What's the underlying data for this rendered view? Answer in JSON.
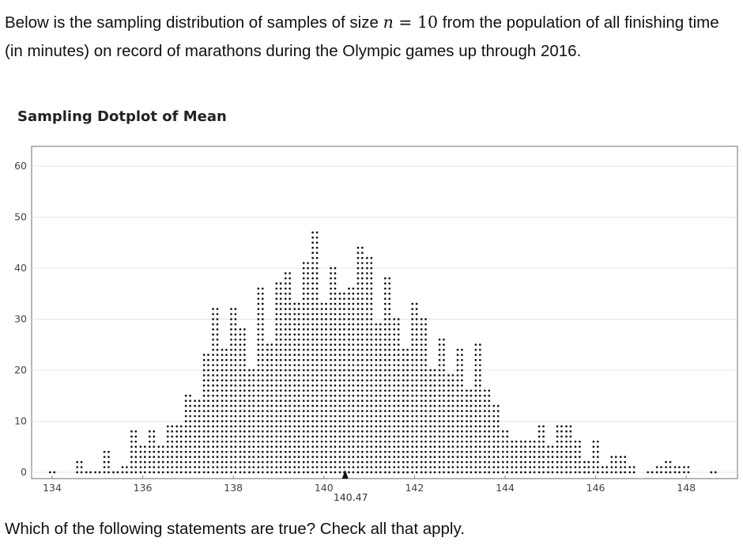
{
  "intro": {
    "part1": "Below is the sampling distribution of samples of size ",
    "n_symbol": "n",
    "equals": " = ",
    "n_value": "10",
    "part2": " from the population of all finishing time (in minutes) on record of marathons during the Olympic games up through 2016."
  },
  "chart_data": {
    "type": "scatter",
    "subtype": "dotplot",
    "title": "Sampling Dotplot of Mean",
    "xlabel": "",
    "ylabel": "",
    "xlim": [
      133.2,
      149.0
    ],
    "ylim": [
      0,
      65
    ],
    "x_ticks": [
      "134",
      "136",
      "138",
      "140",
      "142",
      "144",
      "146",
      "148"
    ],
    "y_ticks": [
      "0",
      "10",
      "20",
      "30",
      "40",
      "50",
      "60"
    ],
    "grid": true,
    "bin_width": 0.2,
    "dot_color": "#111111",
    "mean_marker": {
      "value": 140.47,
      "label": "140.47"
    },
    "bins": [
      {
        "x": 134.0,
        "count": 1
      },
      {
        "x": 134.6,
        "count": 3
      },
      {
        "x": 134.8,
        "count": 1
      },
      {
        "x": 135.0,
        "count": 1
      },
      {
        "x": 135.2,
        "count": 5
      },
      {
        "x": 135.4,
        "count": 1
      },
      {
        "x": 135.6,
        "count": 2
      },
      {
        "x": 135.8,
        "count": 9
      },
      {
        "x": 136.0,
        "count": 6
      },
      {
        "x": 136.2,
        "count": 9
      },
      {
        "x": 136.4,
        "count": 6
      },
      {
        "x": 136.6,
        "count": 10
      },
      {
        "x": 136.8,
        "count": 10
      },
      {
        "x": 137.0,
        "count": 16
      },
      {
        "x": 137.2,
        "count": 15
      },
      {
        "x": 137.4,
        "count": 24
      },
      {
        "x": 137.6,
        "count": 33
      },
      {
        "x": 137.8,
        "count": 25
      },
      {
        "x": 138.0,
        "count": 33
      },
      {
        "x": 138.2,
        "count": 29
      },
      {
        "x": 138.4,
        "count": 21
      },
      {
        "x": 138.6,
        "count": 37
      },
      {
        "x": 138.8,
        "count": 26
      },
      {
        "x": 139.0,
        "count": 38
      },
      {
        "x": 139.2,
        "count": 40
      },
      {
        "x": 139.4,
        "count": 34
      },
      {
        "x": 139.6,
        "count": 42
      },
      {
        "x": 139.8,
        "count": 48
      },
      {
        "x": 140.0,
        "count": 34
      },
      {
        "x": 140.2,
        "count": 41
      },
      {
        "x": 140.4,
        "count": 36
      },
      {
        "x": 140.6,
        "count": 37
      },
      {
        "x": 140.8,
        "count": 45
      },
      {
        "x": 141.0,
        "count": 43
      },
      {
        "x": 141.2,
        "count": 30
      },
      {
        "x": 141.4,
        "count": 39
      },
      {
        "x": 141.6,
        "count": 31
      },
      {
        "x": 141.8,
        "count": 25
      },
      {
        "x": 142.0,
        "count": 34
      },
      {
        "x": 142.2,
        "count": 31
      },
      {
        "x": 142.4,
        "count": 21
      },
      {
        "x": 142.6,
        "count": 27
      },
      {
        "x": 142.8,
        "count": 20
      },
      {
        "x": 143.0,
        "count": 25
      },
      {
        "x": 143.2,
        "count": 17
      },
      {
        "x": 143.4,
        "count": 26
      },
      {
        "x": 143.6,
        "count": 17
      },
      {
        "x": 143.8,
        "count": 14
      },
      {
        "x": 144.0,
        "count": 9
      },
      {
        "x": 144.2,
        "count": 7
      },
      {
        "x": 144.4,
        "count": 7
      },
      {
        "x": 144.6,
        "count": 7
      },
      {
        "x": 144.8,
        "count": 10
      },
      {
        "x": 145.0,
        "count": 6
      },
      {
        "x": 145.2,
        "count": 10
      },
      {
        "x": 145.4,
        "count": 10
      },
      {
        "x": 145.6,
        "count": 7
      },
      {
        "x": 145.8,
        "count": 3
      },
      {
        "x": 146.0,
        "count": 7
      },
      {
        "x": 146.2,
        "count": 2
      },
      {
        "x": 146.4,
        "count": 4
      },
      {
        "x": 146.6,
        "count": 4
      },
      {
        "x": 146.8,
        "count": 2
      },
      {
        "x": 147.2,
        "count": 1
      },
      {
        "x": 147.4,
        "count": 2
      },
      {
        "x": 147.6,
        "count": 3
      },
      {
        "x": 147.8,
        "count": 2
      },
      {
        "x": 148.0,
        "count": 2
      },
      {
        "x": 148.6,
        "count": 1
      }
    ]
  },
  "question": "Which of the following statements are true?  Check all that apply."
}
